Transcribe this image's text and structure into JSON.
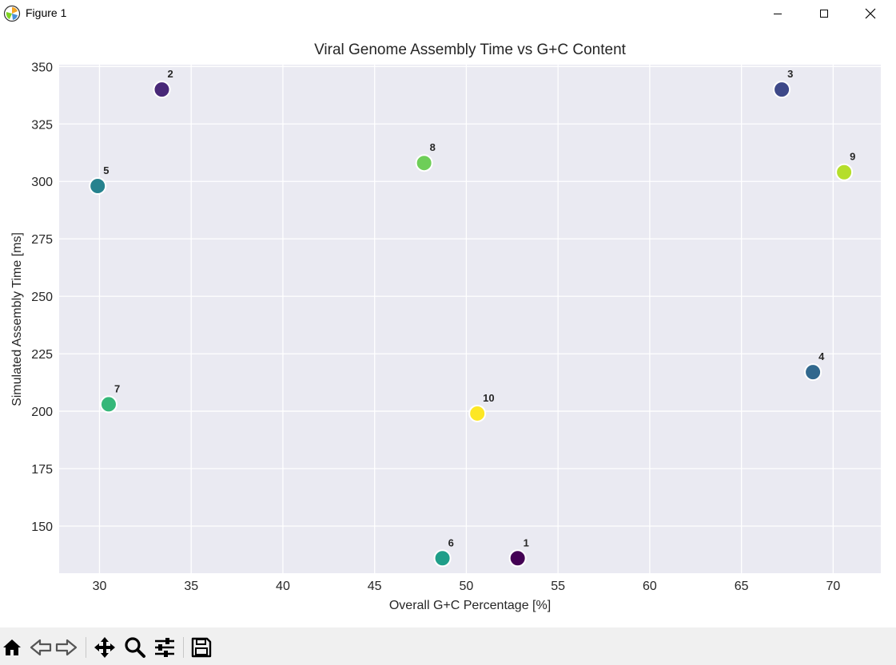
{
  "window": {
    "title": "Figure 1",
    "icons": {
      "app": "matplotlib-icon",
      "minimize": "minimize-icon",
      "maximize": "maximize-icon",
      "close": "close-icon"
    }
  },
  "toolbar": {
    "buttons": [
      "home-icon",
      "back-arrow-icon",
      "forward-arrow-icon",
      "pan-icon",
      "zoom-icon",
      "configure-subplots-icon",
      "save-icon"
    ]
  },
  "chart_data": {
    "type": "scatter",
    "title": "Viral Genome Assembly Time vs G+C Content",
    "xlabel": "Overall G+C Percentage [%]",
    "ylabel": "Simulated Assembly Time [ms]",
    "xlim": [
      27.8,
      72.6
    ],
    "ylim": [
      129.5,
      350.8
    ],
    "xticks": [
      30,
      35,
      40,
      45,
      50,
      55,
      60,
      65,
      70
    ],
    "yticks": [
      150,
      175,
      200,
      225,
      250,
      275,
      300,
      325,
      350
    ],
    "grid": true,
    "colormap": "viridis",
    "background": "#eaeaf2",
    "points": [
      {
        "label": "1",
        "x": 52.8,
        "y": 136,
        "color": "#440154"
      },
      {
        "label": "2",
        "x": 33.4,
        "y": 340,
        "color": "#482878"
      },
      {
        "label": "3",
        "x": 67.2,
        "y": 340,
        "color": "#3e4989"
      },
      {
        "label": "4",
        "x": 68.9,
        "y": 217,
        "color": "#31688e"
      },
      {
        "label": "5",
        "x": 29.9,
        "y": 298,
        "color": "#26828e"
      },
      {
        "label": "6",
        "x": 48.7,
        "y": 136,
        "color": "#1f9e89"
      },
      {
        "label": "7",
        "x": 30.5,
        "y": 203,
        "color": "#35b779"
      },
      {
        "label": "8",
        "x": 47.7,
        "y": 308,
        "color": "#6ece58"
      },
      {
        "label": "9",
        "x": 70.6,
        "y": 304,
        "color": "#b5de2b"
      },
      {
        "label": "10",
        "x": 50.6,
        "y": 199,
        "color": "#fde725"
      }
    ]
  }
}
